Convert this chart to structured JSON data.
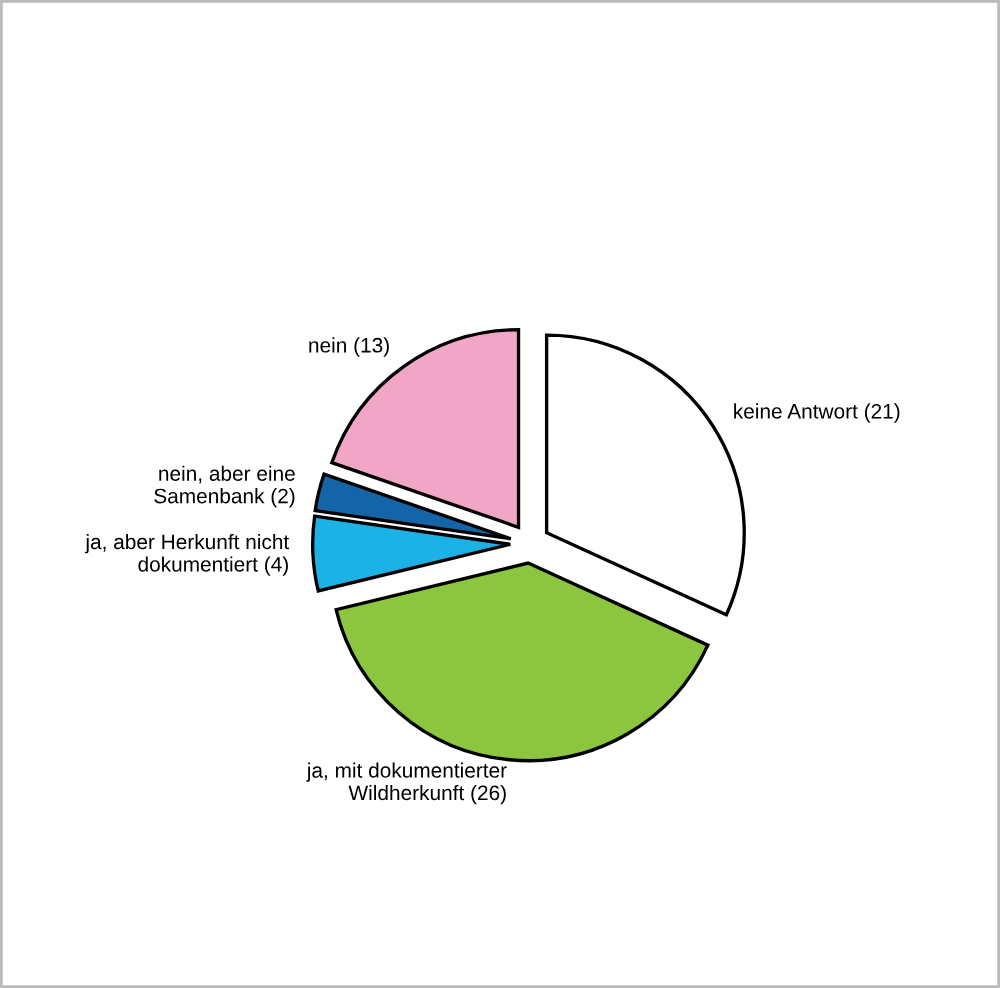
{
  "chart_data": {
    "type": "pie",
    "categories": [
      "keine Antwort (21)",
      "ja, mit dokumentierter\nWildherkunft (26)",
      "ja, aber Herkunft nicht\ndokumentiert (4)",
      "nein, aber eine\nSamenbank (2)",
      "nein (13)"
    ],
    "values": [
      21,
      26,
      4,
      2,
      13
    ],
    "colors": [
      "#ffffff",
      "#8cc63e",
      "#1cb2e6",
      "#1464a8",
      "#f2a6c6"
    ],
    "legend": false
  }
}
